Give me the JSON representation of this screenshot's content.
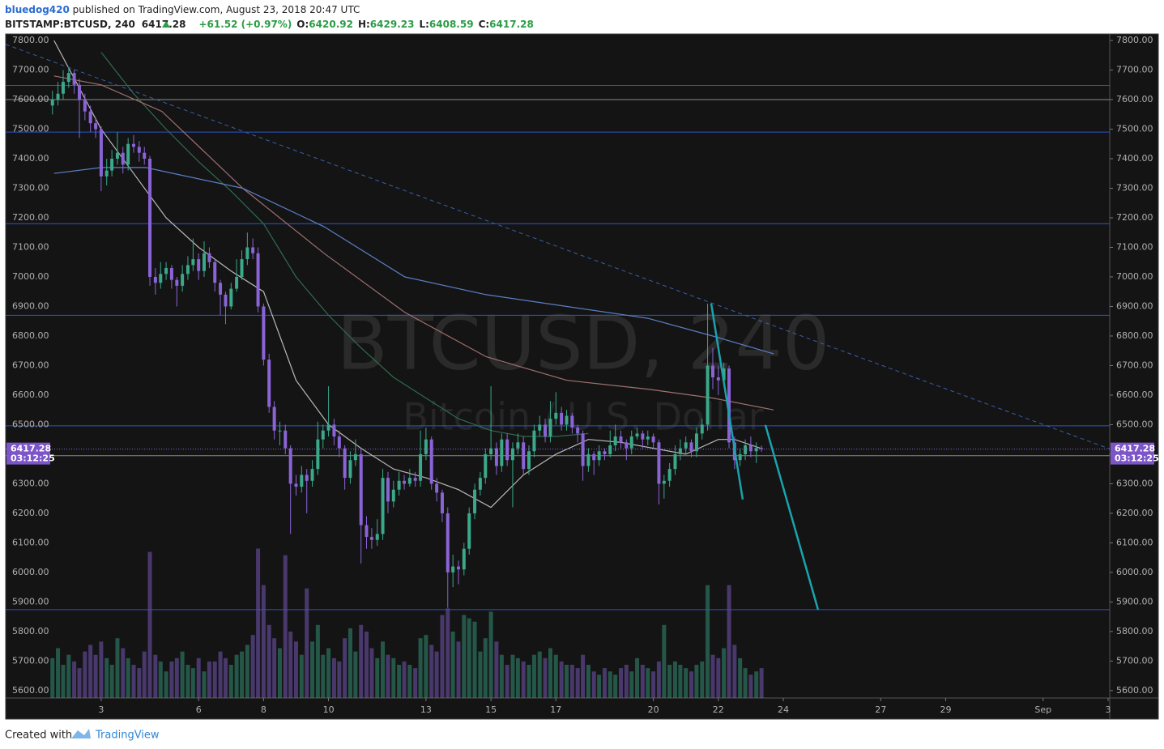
{
  "header": {
    "author": "bluedog420",
    "published": " published on TradingView.com, August 23, 2018 20:47 UTC",
    "symbol": "BITSTAMP:BTCUSD, 240",
    "price": "6417.28",
    "change": "+61.52 (+0.97%)",
    "o_label": "O:",
    "o": "6420.92",
    "h_label": "H:",
    "h": "6429.23",
    "l_label": "L:",
    "l": "6408.59",
    "c_label": "C:",
    "c": "6417.28"
  },
  "footer": {
    "created_with": "Created with",
    "brand": "TradingView"
  },
  "chart_data": {
    "type": "candlestick",
    "watermark": "BTCUSD, 240",
    "watermark_subtitle": "Bitcoin / U.S. Dollar",
    "up_color": "#3aa889",
    "down_color": "#8a64d6",
    "xlim": [
      0.06,
      34.05
    ],
    "ylim": [
      5575,
      7822
    ],
    "volume_ylim": [
      0,
      20000
    ],
    "xticks": [
      3,
      6,
      8,
      10,
      13,
      15,
      17,
      20,
      22,
      24,
      27,
      29,
      {
        "value": 32,
        "label": "Sep"
      },
      {
        "value": 34,
        "label": "3"
      }
    ],
    "yticks": [
      {
        "value": 5600,
        "label": "5600.00"
      },
      {
        "value": 5700,
        "label": "5700.00"
      },
      {
        "value": 5800,
        "label": "5800.00"
      },
      {
        "value": 5900,
        "label": "5900.00"
      },
      {
        "value": 6000,
        "label": "6000.00"
      },
      {
        "value": 6100,
        "label": "6100.00"
      },
      {
        "value": 6200,
        "label": "6200.00"
      },
      {
        "value": 6300,
        "label": "6300.00"
      },
      {
        "value": 6400,
        "label": "6400.00"
      },
      {
        "value": 6500,
        "label": "6500.00"
      },
      {
        "value": 6600,
        "label": "6600.00"
      },
      {
        "value": 6700,
        "label": "6700.00"
      },
      {
        "value": 6800,
        "label": "6800.00"
      },
      {
        "value": 6900,
        "label": "6900.00"
      },
      {
        "value": 7000,
        "label": "7000.00"
      },
      {
        "value": 7100,
        "label": "7100.00"
      },
      {
        "value": 7200,
        "label": "7200.00"
      },
      {
        "value": 7300,
        "label": "7300.00"
      },
      {
        "value": 7400,
        "label": "7400.00"
      },
      {
        "value": 7500,
        "label": "7500.00"
      },
      {
        "value": 7600,
        "label": "7600.00"
      },
      {
        "value": 7700,
        "label": "7700.00"
      },
      {
        "value": 7800,
        "label": "7800.00"
      }
    ],
    "last_price": 6417.28,
    "countdown": "03:12:25",
    "x": [
      1.5,
      1.67,
      1.83,
      2,
      2.17,
      2.33,
      2.5,
      2.67,
      2.83,
      3,
      3.17,
      3.33,
      3.5,
      3.67,
      3.83,
      4,
      4.17,
      4.33,
      4.5,
      4.67,
      4.83,
      5,
      5.17,
      5.33,
      5.5,
      5.67,
      5.83,
      6,
      6.17,
      6.33,
      6.5,
      6.67,
      6.83,
      7,
      7.17,
      7.33,
      7.5,
      7.67,
      7.83,
      8,
      8.17,
      8.33,
      8.5,
      8.67,
      8.83,
      9,
      9.17,
      9.33,
      9.5,
      9.67,
      9.83,
      10,
      10.17,
      10.33,
      10.5,
      10.67,
      10.83,
      11,
      11.17,
      11.33,
      11.5,
      11.67,
      11.83,
      12,
      12.17,
      12.33,
      12.5,
      12.67,
      12.83,
      13,
      13.17,
      13.33,
      13.5,
      13.67,
      13.83,
      14,
      14.17,
      14.33,
      14.5,
      14.67,
      14.83,
      15,
      15.17,
      15.33,
      15.5,
      15.67,
      15.83,
      16,
      16.17,
      16.33,
      16.5,
      16.67,
      16.83,
      17,
      17.17,
      17.33,
      17.5,
      17.67,
      17.83,
      18,
      18.17,
      18.33,
      18.5,
      18.67,
      18.83,
      19,
      19.17,
      19.33,
      19.5,
      19.67,
      19.83,
      20,
      20.17,
      20.33,
      20.5,
      20.67,
      20.83,
      21,
      21.17,
      21.33,
      21.5,
      21.67,
      21.83,
      22,
      22.17,
      22.33,
      22.5,
      22.67,
      22.83,
      23,
      23.17,
      23.33
    ],
    "ohlc": [
      [
        7580,
        7630,
        7550,
        7600
      ],
      [
        7600,
        7660,
        7580,
        7620
      ],
      [
        7620,
        7700,
        7600,
        7660
      ],
      [
        7660,
        7710,
        7640,
        7690
      ],
      [
        7690,
        7700,
        7620,
        7650
      ],
      [
        7650,
        7670,
        7470,
        7600
      ],
      [
        7600,
        7620,
        7530,
        7560
      ],
      [
        7560,
        7580,
        7490,
        7520
      ],
      [
        7520,
        7540,
        7470,
        7500
      ],
      [
        7500,
        7510,
        7290,
        7340
      ],
      [
        7340,
        7400,
        7310,
        7360
      ],
      [
        7360,
        7430,
        7340,
        7400
      ],
      [
        7400,
        7490,
        7380,
        7420
      ],
      [
        7420,
        7440,
        7350,
        7380
      ],
      [
        7380,
        7470,
        7360,
        7450
      ],
      [
        7450,
        7480,
        7420,
        7440
      ],
      [
        7440,
        7460,
        7390,
        7420
      ],
      [
        7420,
        7440,
        7380,
        7400
      ],
      [
        7400,
        7410,
        6970,
        7000
      ],
      [
        7000,
        7030,
        6940,
        6980
      ],
      [
        6980,
        7050,
        6960,
        7010
      ],
      [
        7010,
        7050,
        6990,
        7030
      ],
      [
        7030,
        7040,
        6960,
        6990
      ],
      [
        6990,
        7000,
        6900,
        6970
      ],
      [
        6970,
        7040,
        6950,
        7010
      ],
      [
        7010,
        7070,
        6990,
        7040
      ],
      [
        7040,
        7130,
        7020,
        7060
      ],
      [
        7060,
        7080,
        6990,
        7020
      ],
      [
        7020,
        7120,
        7000,
        7080
      ],
      [
        7080,
        7100,
        7030,
        7050
      ],
      [
        7050,
        7060,
        6950,
        6980
      ],
      [
        6980,
        6990,
        6870,
        6940
      ],
      [
        6940,
        6950,
        6840,
        6900
      ],
      [
        6900,
        6980,
        6890,
        6960
      ],
      [
        6960,
        7060,
        6950,
        7000
      ],
      [
        7000,
        7090,
        6990,
        7060
      ],
      [
        7060,
        7150,
        7040,
        7100
      ],
      [
        7100,
        7130,
        7060,
        7080
      ],
      [
        7080,
        7100,
        6880,
        6900
      ],
      [
        6900,
        6910,
        6700,
        6720
      ],
      [
        6720,
        6740,
        6540,
        6560
      ],
      [
        6560,
        6580,
        6450,
        6480
      ],
      [
        6480,
        6510,
        6430,
        6480
      ],
      [
        6480,
        6500,
        6400,
        6420
      ],
      [
        6420,
        6430,
        6130,
        6300
      ],
      [
        6300,
        6330,
        6260,
        6290
      ],
      [
        6290,
        6360,
        6270,
        6330
      ],
      [
        6330,
        6350,
        6200,
        6310
      ],
      [
        6310,
        6380,
        6290,
        6350
      ],
      [
        6350,
        6510,
        6330,
        6450
      ],
      [
        6450,
        6500,
        6420,
        6480
      ],
      [
        6480,
        6630,
        6460,
        6500
      ],
      [
        6500,
        6520,
        6430,
        6460
      ],
      [
        6460,
        6480,
        6390,
        6420
      ],
      [
        6420,
        6430,
        6280,
        6320
      ],
      [
        6320,
        6410,
        6300,
        6380
      ],
      [
        6380,
        6450,
        6360,
        6400
      ],
      [
        6400,
        6420,
        6030,
        6160
      ],
      [
        6160,
        6190,
        6080,
        6120
      ],
      [
        6120,
        6150,
        6080,
        6110
      ],
      [
        6110,
        6180,
        6090,
        6130
      ],
      [
        6130,
        6350,
        6110,
        6320
      ],
      [
        6320,
        6340,
        6200,
        6240
      ],
      [
        6240,
        6310,
        6220,
        6280
      ],
      [
        6280,
        6340,
        6260,
        6310
      ],
      [
        6310,
        6330,
        6280,
        6300
      ],
      [
        6300,
        6350,
        6290,
        6320
      ],
      [
        6320,
        6340,
        6290,
        6310
      ],
      [
        6310,
        6480,
        6290,
        6400
      ],
      [
        6400,
        6490,
        6380,
        6450
      ],
      [
        6450,
        6460,
        6280,
        6300
      ],
      [
        6300,
        6320,
        6240,
        6270
      ],
      [
        6270,
        6280,
        6170,
        6200
      ],
      [
        6200,
        6220,
        5880,
        6000
      ],
      [
        6000,
        6060,
        5950,
        6020
      ],
      [
        6020,
        6040,
        5960,
        6010
      ],
      [
        6010,
        6100,
        5990,
        6080
      ],
      [
        6080,
        6220,
        6060,
        6200
      ],
      [
        6200,
        6300,
        6180,
        6280
      ],
      [
        6280,
        6340,
        6260,
        6320
      ],
      [
        6320,
        6420,
        6300,
        6400
      ],
      [
        6400,
        6630,
        6380,
        6420
      ],
      [
        6420,
        6440,
        6330,
        6360
      ],
      [
        6360,
        6470,
        6340,
        6450
      ],
      [
        6450,
        6470,
        6360,
        6380
      ],
      [
        6380,
        6440,
        6220,
        6420
      ],
      [
        6420,
        6470,
        6400,
        6440
      ],
      [
        6440,
        6460,
        6330,
        6350
      ],
      [
        6350,
        6430,
        6330,
        6410
      ],
      [
        6410,
        6500,
        6390,
        6480
      ],
      [
        6480,
        6530,
        6460,
        6500
      ],
      [
        6500,
        6520,
        6440,
        6460
      ],
      [
        6460,
        6580,
        6440,
        6520
      ],
      [
        6520,
        6610,
        6500,
        6540
      ],
      [
        6540,
        6560,
        6480,
        6500
      ],
      [
        6500,
        6550,
        6480,
        6530
      ],
      [
        6530,
        6540,
        6470,
        6490
      ],
      [
        6490,
        6500,
        6440,
        6470
      ],
      [
        6470,
        6480,
        6310,
        6360
      ],
      [
        6360,
        6420,
        6340,
        6400
      ],
      [
        6400,
        6410,
        6330,
        6380
      ],
      [
        6380,
        6430,
        6360,
        6410
      ],
      [
        6410,
        6420,
        6380,
        6400
      ],
      [
        6400,
        6480,
        6390,
        6430
      ],
      [
        6430,
        6500,
        6410,
        6460
      ],
      [
        6460,
        6480,
        6420,
        6440
      ],
      [
        6440,
        6450,
        6380,
        6420
      ],
      [
        6420,
        6480,
        6400,
        6460
      ],
      [
        6460,
        6490,
        6450,
        6470
      ],
      [
        6470,
        6480,
        6420,
        6450
      ],
      [
        6450,
        6480,
        6430,
        6460
      ],
      [
        6460,
        6470,
        6420,
        6440
      ],
      [
        6440,
        6450,
        6230,
        6300
      ],
      [
        6300,
        6330,
        6250,
        6310
      ],
      [
        6310,
        6370,
        6290,
        6350
      ],
      [
        6350,
        6430,
        6330,
        6400
      ],
      [
        6400,
        6450,
        6380,
        6420
      ],
      [
        6420,
        6460,
        6400,
        6440
      ],
      [
        6440,
        6450,
        6390,
        6410
      ],
      [
        6410,
        6490,
        6390,
        6470
      ],
      [
        6470,
        6520,
        6450,
        6500
      ],
      [
        6500,
        6910,
        6480,
        6700
      ],
      [
        6700,
        6760,
        6620,
        6660
      ],
      [
        6660,
        6700,
        6600,
        6650
      ],
      [
        6650,
        6710,
        6630,
        6690
      ],
      [
        6690,
        6700,
        6420,
        6440
      ],
      [
        6440,
        6460,
        6350,
        6380
      ],
      [
        6380,
        6420,
        6360,
        6400
      ],
      [
        6400,
        6450,
        6380,
        6430
      ],
      [
        6430,
        6460,
        6390,
        6410
      ],
      [
        6410,
        6440,
        6370,
        6420.92
      ],
      [
        6420.92,
        6429.23,
        6408.59,
        6417.28
      ]
    ],
    "volume": [
      1200,
      1500,
      1000,
      1300,
      1100,
      900,
      1400,
      1600,
      1300,
      1700,
      1200,
      1000,
      1800,
      1500,
      1200,
      1000,
      900,
      1400,
      4400,
      1300,
      1100,
      800,
      1100,
      1200,
      1400,
      1000,
      900,
      1200,
      800,
      1100,
      1100,
      1400,
      1200,
      1000,
      1300,
      1400,
      1600,
      1900,
      4500,
      3400,
      2200,
      1800,
      1500,
      4300,
      2000,
      1700,
      1300,
      3300,
      1700,
      2200,
      1300,
      1500,
      1200,
      1100,
      1800,
      2100,
      1400,
      2200,
      2000,
      1500,
      1200,
      1700,
      1300,
      1200,
      1000,
      1100,
      1000,
      900,
      1800,
      1900,
      1600,
      1400,
      2500,
      2700,
      2000,
      1700,
      2500,
      2400,
      2300,
      1400,
      1800,
      2600,
      1700,
      1300,
      1000,
      1300,
      1200,
      1100,
      1000,
      1300,
      1400,
      1200,
      1500,
      1300,
      1100,
      1000,
      1000,
      900,
      1300,
      1000,
      800,
      700,
      900,
      800,
      700,
      900,
      1000,
      800,
      1200,
      1000,
      900,
      800,
      1100,
      2200,
      1000,
      1100,
      1000,
      900,
      800,
      1000,
      1100,
      3400,
      1300,
      1200,
      1500,
      3400,
      1600,
      1200,
      900,
      700,
      800,
      900
    ],
    "moving_averages": [
      {
        "color": "#b9b9b9",
        "x": [
          1.55,
          3,
          4,
          5,
          6,
          7,
          8,
          9,
          10,
          11,
          12,
          13,
          14,
          15,
          16,
          17,
          18,
          19,
          20,
          21,
          22,
          22.5,
          23.3
        ],
        "values": [
          7800,
          7500,
          7350,
          7200,
          7100,
          7020,
          6950,
          6650,
          6500,
          6420,
          6350,
          6320,
          6280,
          6220,
          6330,
          6400,
          6450,
          6440,
          6420,
          6400,
          6450,
          6450,
          6420
        ]
      },
      {
        "color": "#2f6b4f",
        "x": [
          3,
          4,
          5,
          6,
          7,
          8,
          9,
          10,
          11,
          12,
          13,
          14,
          15,
          16,
          17,
          18
        ],
        "values": [
          7760,
          7620,
          7500,
          7390,
          7290,
          7180,
          7000,
          6870,
          6760,
          6660,
          6590,
          6520,
          6480,
          6460,
          6460,
          6470
        ]
      },
      {
        "color": "#a07070",
        "x": [
          1.55,
          3,
          4.87,
          7.36,
          9.86,
          12.35,
          14.85,
          17.34,
          19.83,
          21.83,
          23.7
        ],
        "values": [
          7680,
          7650,
          7560,
          7300,
          7080,
          6880,
          6730,
          6650,
          6620,
          6590,
          6550
        ]
      },
      {
        "color": "#5b7fc7",
        "x": [
          1.55,
          3,
          4.37,
          7.36,
          9.86,
          12.35,
          14.85,
          17.34,
          19.83,
          21.83,
          23.7
        ],
        "values": [
          7350,
          7370,
          7370,
          7300,
          7170,
          7000,
          6940,
          6900,
          6860,
          6800,
          6740
        ]
      }
    ],
    "levels": [
      {
        "value": 7648,
        "color": "#2b56c9"
      },
      {
        "value": 7600,
        "color": "#8a8a8a"
      },
      {
        "value": 7490,
        "color": "#2b56c9"
      },
      {
        "value": 7180,
        "color": "#2b56c9"
      },
      {
        "value": 6870,
        "color": "#2b56c9"
      },
      {
        "value": 6496,
        "color": "#2b56c9"
      },
      {
        "value": 6395,
        "color": "#8a8a8a"
      },
      {
        "value": 5874,
        "color": "#2b56c9"
      }
    ],
    "trend_lines": [
      {
        "x": [
          0.06,
          34.05
        ],
        "values": [
          7787,
          6418
        ],
        "color": "#3a5fa8",
        "dashed": true
      },
      {
        "x": [
          21.78,
          22.75
        ],
        "values": [
          6910,
          6247
        ],
        "color": "#1aa3ad"
      },
      {
        "x": [
          23.45,
          25.07
        ],
        "values": [
          6499,
          5874
        ],
        "color": "#1aa3ad"
      }
    ]
  }
}
